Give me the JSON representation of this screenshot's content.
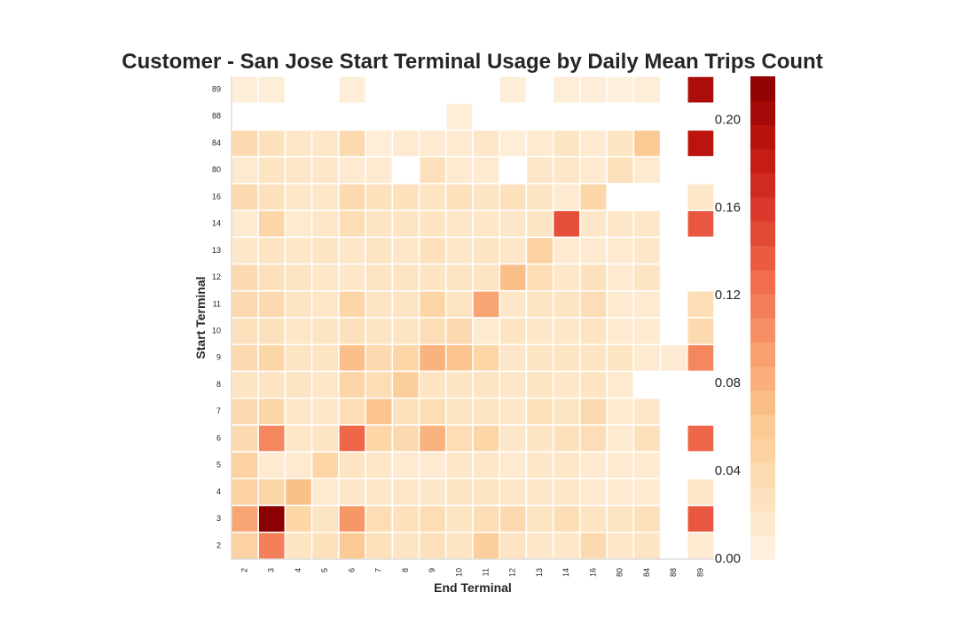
{
  "chart_data": {
    "type": "heatmap",
    "title": "Customer - San Jose Start Terminal Usage by Daily Mean Trips Count",
    "xlabel": "End Terminal",
    "ylabel": "Start Terminal",
    "x_categories": [
      "2",
      "3",
      "4",
      "5",
      "6",
      "7",
      "8",
      "9",
      "10",
      "11",
      "12",
      "13",
      "14",
      "16",
      "80",
      "84",
      "88",
      "89"
    ],
    "y_categories": [
      "89",
      "88",
      "84",
      "80",
      "16",
      "14",
      "13",
      "12",
      "11",
      "10",
      "9",
      "8",
      "7",
      "6",
      "5",
      "4",
      "3",
      "2"
    ],
    "values": [
      [
        0.01,
        0.01,
        null,
        null,
        0.01,
        null,
        null,
        null,
        null,
        null,
        0.01,
        null,
        0.01,
        0.01,
        0.005,
        0.01,
        null,
        0.2
      ],
      [
        null,
        null,
        null,
        null,
        null,
        null,
        null,
        null,
        0.01,
        null,
        null,
        null,
        null,
        null,
        null,
        null,
        null,
        null
      ],
      [
        0.04,
        0.03,
        0.02,
        0.02,
        0.04,
        0.01,
        0.015,
        0.015,
        0.015,
        0.02,
        0.01,
        0.015,
        0.025,
        0.015,
        0.025,
        0.06,
        null,
        0.19
      ],
      [
        0.015,
        0.025,
        0.02,
        0.02,
        0.015,
        0.015,
        null,
        0.03,
        0.015,
        0.015,
        null,
        0.02,
        0.02,
        0.015,
        0.03,
        0.015,
        null,
        null
      ],
      [
        0.04,
        0.03,
        0.02,
        0.02,
        0.04,
        0.03,
        0.03,
        0.025,
        0.03,
        0.025,
        0.03,
        0.025,
        0.015,
        0.045,
        null,
        null,
        null,
        0.02
      ],
      [
        0.015,
        0.045,
        0.015,
        0.02,
        0.035,
        0.025,
        0.025,
        0.025,
        0.02,
        0.02,
        0.02,
        0.025,
        0.145,
        0.02,
        0.02,
        0.02,
        null,
        0.14
      ],
      [
        0.02,
        0.025,
        0.02,
        0.025,
        0.02,
        0.025,
        0.02,
        0.03,
        0.02,
        0.025,
        0.02,
        0.05,
        0.015,
        0.015,
        0.015,
        0.02,
        null,
        null
      ],
      [
        0.04,
        0.03,
        0.025,
        0.02,
        0.02,
        0.025,
        0.025,
        0.025,
        0.025,
        0.025,
        0.07,
        0.035,
        0.02,
        0.03,
        0.015,
        0.025,
        null,
        null
      ],
      [
        0.04,
        0.04,
        0.025,
        0.02,
        0.045,
        0.025,
        0.025,
        0.045,
        0.025,
        0.09,
        0.02,
        0.025,
        0.025,
        0.035,
        0.015,
        0.015,
        null,
        0.035
      ],
      [
        0.03,
        0.03,
        0.02,
        0.025,
        0.03,
        0.025,
        0.025,
        0.035,
        0.04,
        0.015,
        0.025,
        0.02,
        0.02,
        0.025,
        0.015,
        0.015,
        null,
        0.04
      ],
      [
        0.04,
        0.045,
        0.025,
        0.025,
        0.07,
        0.04,
        0.045,
        0.08,
        0.065,
        0.045,
        0.02,
        0.025,
        0.025,
        0.025,
        0.025,
        0.015,
        0.015,
        0.11
      ],
      [
        0.025,
        0.025,
        0.025,
        0.02,
        0.045,
        0.035,
        0.055,
        0.025,
        0.025,
        0.025,
        0.02,
        0.025,
        0.02,
        0.025,
        0.015,
        null,
        null,
        null
      ],
      [
        0.04,
        0.045,
        0.02,
        0.02,
        0.035,
        0.065,
        0.03,
        0.035,
        0.025,
        0.025,
        0.02,
        0.03,
        0.025,
        0.04,
        0.015,
        0.02,
        null,
        null
      ],
      [
        0.04,
        0.11,
        0.02,
        0.025,
        0.13,
        0.045,
        0.04,
        0.08,
        0.035,
        0.045,
        0.02,
        0.025,
        0.03,
        0.035,
        0.015,
        0.03,
        null,
        0.13
      ],
      [
        0.05,
        0.015,
        0.015,
        0.045,
        0.025,
        0.02,
        0.015,
        0.015,
        0.02,
        0.02,
        0.015,
        0.02,
        0.02,
        0.015,
        0.015,
        0.015,
        null,
        null
      ],
      [
        0.05,
        0.045,
        0.07,
        0.015,
        0.02,
        0.02,
        0.02,
        0.02,
        0.025,
        0.025,
        0.02,
        0.02,
        0.02,
        0.015,
        0.015,
        0.015,
        null,
        0.02
      ],
      [
        0.09,
        0.22,
        0.045,
        0.025,
        0.1,
        0.035,
        0.03,
        0.035,
        0.025,
        0.035,
        0.04,
        0.025,
        0.035,
        0.025,
        0.025,
        0.03,
        null,
        0.14
      ],
      [
        0.05,
        0.115,
        0.025,
        0.03,
        0.06,
        0.03,
        0.025,
        0.03,
        0.025,
        0.055,
        0.025,
        0.02,
        0.02,
        0.04,
        0.02,
        0.025,
        null,
        0.015
      ]
    ],
    "vmin": 0.0,
    "vmax": 0.22,
    "colormap": "OrRd (discrete, light peach to dark red)",
    "colorbar": {
      "ticks": [
        0.0,
        0.04,
        0.08,
        0.12,
        0.16,
        0.2
      ],
      "tick_labels": [
        "0.00",
        "0.04",
        "0.08",
        "0.12",
        "0.16",
        "0.20"
      ]
    },
    "grid": false,
    "colors": {
      "low": "#fff3e4",
      "high": "#8b0000",
      "cell_border": "#ffffff",
      "text": "#262626"
    }
  }
}
